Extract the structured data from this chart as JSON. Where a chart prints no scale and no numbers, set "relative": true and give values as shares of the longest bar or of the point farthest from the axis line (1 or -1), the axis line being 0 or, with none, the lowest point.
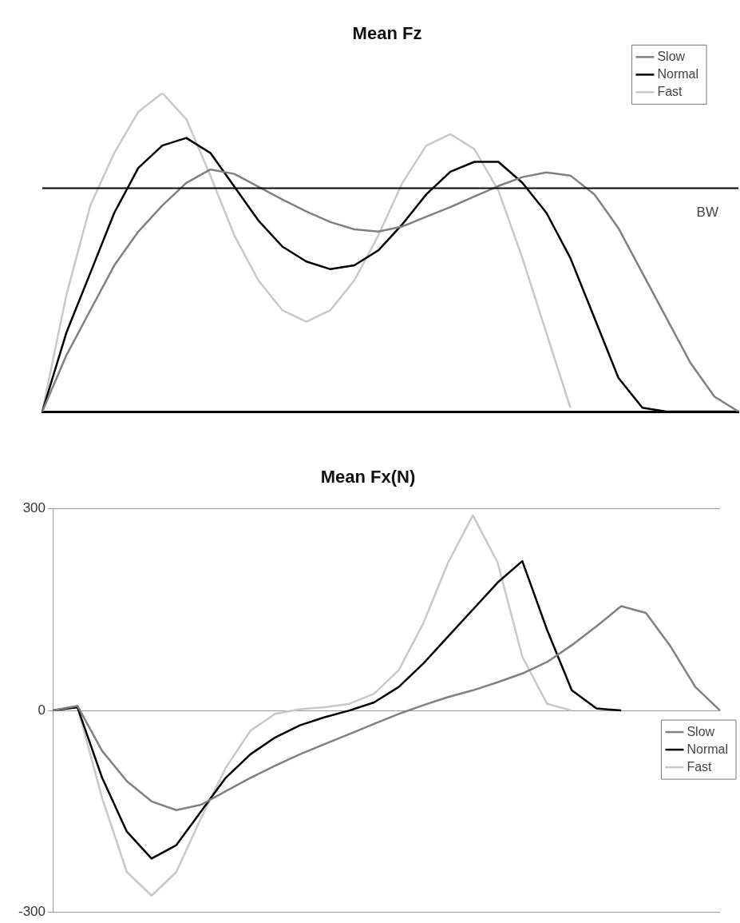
{
  "chart_data": [
    {
      "type": "line",
      "title": "Mean Fz",
      "relative": true,
      "categories": [
        null,
        null,
        null,
        null,
        null,
        null,
        null,
        null,
        null,
        null,
        null,
        null,
        null,
        null,
        null,
        null,
        null,
        null,
        null,
        null,
        null,
        null,
        null,
        null,
        null,
        null,
        null,
        null,
        null,
        null
      ],
      "series": [
        {
          "name": "Slow",
          "color": "#808080",
          "values": [
            0,
            0.176,
            0.318,
            0.459,
            0.565,
            0.647,
            0.718,
            0.76,
            0.746,
            0.706,
            0.666,
            0.628,
            0.595,
            0.572,
            0.565,
            0.581,
            0.612,
            0.642,
            0.675,
            0.708,
            0.736,
            0.751,
            0.741,
            0.682,
            0.576,
            0.435,
            0.294,
            0.153,
            0.047,
            0
          ]
        },
        {
          "name": "Normal",
          "color": "#000000",
          "values": [
            0,
            0.247,
            0.435,
            0.624,
            0.765,
            0.835,
            0.859,
            0.812,
            0.706,
            0.6,
            0.518,
            0.471,
            0.447,
            0.459,
            0.506,
            0.588,
            0.682,
            0.753,
            0.784,
            0.784,
            0.718,
            0.624,
            0.482,
            0.294,
            0.106,
            0.012,
            0,
            0,
            0,
            0
          ]
        },
        {
          "name": "Fast",
          "color": "#c8c8c8",
          "values": [
            0,
            0.365,
            0.647,
            0.812,
            0.941,
            1,
            0.918,
            0.741,
            0.553,
            0.412,
            0.318,
            0.282,
            0.318,
            0.412,
            0.553,
            0.718,
            0.835,
            0.871,
            0.824,
            0.694,
            0.482,
            0.247,
            0.012,
            null,
            null,
            null,
            null,
            null,
            null,
            null
          ]
        }
      ],
      "ref_lines": [
        {
          "axis": "y",
          "value": 0.701,
          "label": "BW",
          "color": "#000000"
        }
      ],
      "legend": "top right",
      "tick_labels": false,
      "grid": false,
      "marker": "none",
      "line_style": "solid"
    },
    {
      "type": "line",
      "title": "Mean Fx(N)",
      "categories": [
        null,
        null,
        null,
        null,
        null,
        null,
        null,
        null,
        null,
        null,
        null,
        null,
        null,
        null,
        null,
        null,
        null,
        null,
        null,
        null,
        null,
        null,
        null,
        null,
        null,
        null,
        null,
        null
      ],
      "series": [
        {
          "name": "Slow",
          "color": "#808080",
          "values": [
            0,
            7,
            -60,
            -105,
            -135,
            -148,
            -140,
            -120,
            -100,
            -82,
            -65,
            -50,
            -35,
            -20,
            -5,
            8,
            20,
            30,
            42,
            55,
            72,
            97,
            125,
            155,
            145,
            95,
            35,
            0
          ]
        },
        {
          "name": "Normal",
          "color": "#000000",
          "values": [
            0,
            5,
            -100,
            -180,
            -220,
            -200,
            -150,
            -100,
            -65,
            -40,
            -22,
            -10,
            0,
            12,
            35,
            70,
            110,
            150,
            190,
            222,
            120,
            30,
            3,
            0,
            null,
            null,
            null,
            null
          ]
        },
        {
          "name": "Fast",
          "color": "#c8c8c8",
          "values": [
            0,
            5,
            -130,
            -240,
            -275,
            -240,
            -160,
            -85,
            -30,
            -5,
            2,
            5,
            10,
            25,
            60,
            130,
            220,
            290,
            220,
            80,
            10,
            0,
            null,
            null,
            null,
            null,
            null,
            null
          ]
        }
      ],
      "ylim": [
        -300,
        300
      ],
      "yticks": [
        -300,
        0,
        300
      ],
      "legend": "right",
      "tick_labels": "y",
      "grid": "y",
      "marker": "none",
      "line_style": "solid"
    }
  ]
}
